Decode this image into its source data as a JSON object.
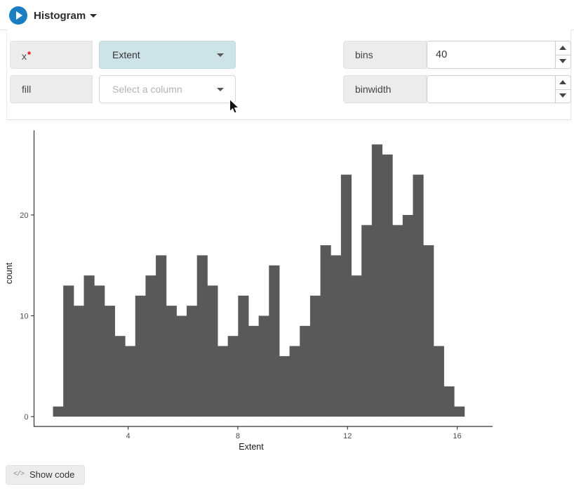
{
  "header": {
    "title": "Histogram"
  },
  "controls": {
    "x": {
      "label": "x",
      "required_mark": "*",
      "value": "Extent"
    },
    "fill": {
      "label": "fill",
      "placeholder": "Select a column"
    },
    "bins": {
      "label": "bins",
      "value": "40"
    },
    "binwidth": {
      "label": "binwidth",
      "value": ""
    }
  },
  "chart_data": {
    "type": "bar",
    "subtype": "histogram",
    "title": "",
    "xlabel": "Extent",
    "ylabel": "count",
    "x_ticks": [
      4,
      8,
      12,
      16
    ],
    "y_ticks": [
      0,
      10,
      20
    ],
    "xlim": [
      0.55,
      17.3
    ],
    "ylim": [
      0,
      28.4
    ],
    "grid": false,
    "legend": "none",
    "bar_color": "#595959",
    "axis_color": "#333333",
    "bin_start": 1.26,
    "bin_width": 0.375,
    "counts": [
      1,
      13,
      11,
      14,
      13,
      11,
      8,
      7,
      12,
      14,
      16,
      11,
      10,
      11,
      16,
      13,
      7,
      8,
      12,
      9,
      10,
      15,
      6,
      7,
      9,
      12,
      17,
      16,
      24,
      14,
      19,
      27,
      26,
      19,
      20,
      24,
      17,
      7,
      3,
      1
    ]
  },
  "footer": {
    "show_code_label": "Show code",
    "code_icon": "</>"
  }
}
